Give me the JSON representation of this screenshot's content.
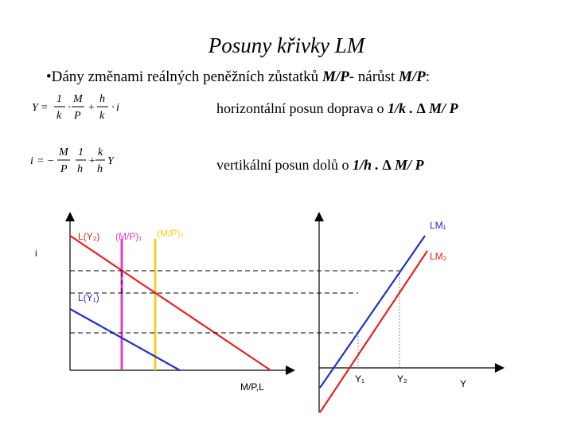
{
  "title": "Posuny křivky LM",
  "bullet": {
    "prefix": "•Dány změnami reálných peněžních zůstatků ",
    "term1": "M/P",
    "middle": "- nárůst ",
    "term2": "M/P",
    "suffix": ":"
  },
  "equations": {
    "eq1": "Y = (1/k)·(M/P) + (h/k)·i",
    "eq2": "i = −(M/P)·(1/h) + (k/h)·Y"
  },
  "descriptions": {
    "d1_text": "horizontální posun doprava o ",
    "d1_term": "1/k . ∆ M/ P",
    "d2_text": "vertikální posun dolů o ",
    "d2_term": "1/h . ∆ M/ P"
  },
  "left_chart": {
    "y_axis_label": "i",
    "x_axis_label": "M/P,L",
    "curve_top": "L(Y₂)",
    "curve_bottom": "L(Y₁)",
    "supply1": "(M/P)₁",
    "supply2": "(M/P)₂",
    "colors": {
      "red": "#e8211e",
      "blue": "#2230c8",
      "magenta": "#e040c8",
      "yellow": "#f0d020",
      "axis": "#000000"
    }
  },
  "right_chart": {
    "x_axis_label": "Y",
    "curve1": "LM₁",
    "curve2": "LM₂",
    "tick1": "Y₁",
    "tick2": "Y₂"
  }
}
